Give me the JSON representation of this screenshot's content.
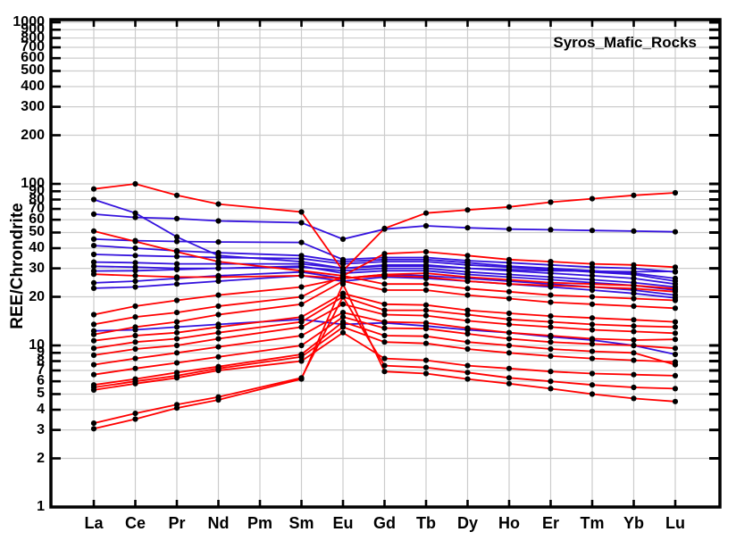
{
  "chart_data": {
    "type": "line",
    "title": "Syros_Mafic_Rocks",
    "ylabel": "REE/Chrondrite",
    "xlabel": "",
    "yscale": "log",
    "ylim": [
      1,
      1000
    ],
    "grid": true,
    "legend": "none",
    "x_categories": [
      "La",
      "Ce",
      "Pr",
      "Nd",
      "Pm",
      "Sm",
      "Eu",
      "Gd",
      "Tb",
      "Dy",
      "Ho",
      "Er",
      "Tm",
      "Yb",
      "Lu"
    ],
    "skip_category": "Pm",
    "y_tick_labels": [
      1000,
      900,
      800,
      700,
      600,
      500,
      400,
      300,
      200,
      100,
      90,
      80,
      70,
      60,
      50,
      40,
      30,
      20,
      10,
      9,
      8,
      7,
      6,
      5,
      4,
      3,
      2,
      1
    ],
    "colors": {
      "red_series": "#ff0000",
      "blue_series": "#3412dd",
      "marker": "#000000",
      "grid": "#cccccc",
      "frame": "#000000"
    },
    "series": [
      {
        "color": "blue",
        "values": [
          65,
          62,
          61,
          59,
          null,
          57.5,
          45.5,
          52.5,
          55,
          53.5,
          52.5,
          52,
          51.5,
          51,
          50.5
        ]
      },
      {
        "color": "blue",
        "values": [
          80,
          66,
          47,
          36,
          null,
          33,
          30,
          31,
          31,
          30,
          29.5,
          29,
          28.8,
          28.6,
          28.7
        ]
      },
      {
        "color": "blue",
        "values": [
          45.5,
          44.5,
          44,
          43.7,
          null,
          43.4,
          34,
          35,
          35,
          33.5,
          32.5,
          31.5,
          30.5,
          30,
          28.5
        ]
      },
      {
        "color": "blue",
        "values": [
          41.5,
          40,
          38.5,
          37.5,
          null,
          36,
          33,
          34,
          34,
          32.5,
          31,
          30,
          29,
          28,
          26
        ]
      },
      {
        "color": "blue",
        "values": [
          36.6,
          36,
          35.5,
          35,
          null,
          34.5,
          32,
          33,
          33,
          31.5,
          30.5,
          29.5,
          28.5,
          27.5,
          25
        ]
      },
      {
        "color": "blue",
        "values": [
          32.8,
          32.5,
          32,
          32,
          null,
          32,
          30,
          31.5,
          31.5,
          30,
          29,
          28,
          27,
          26,
          24
        ]
      },
      {
        "color": "blue",
        "values": [
          30.9,
          30.5,
          30,
          30,
          null,
          30.5,
          29,
          30,
          30,
          28.5,
          27.5,
          26.5,
          25.5,
          24.5,
          23
        ]
      },
      {
        "color": "blue",
        "values": [
          28.9,
          29,
          29.5,
          30,
          null,
          31,
          28,
          29,
          29,
          27.5,
          26.5,
          25.5,
          24.5,
          23.5,
          22
        ]
      },
      {
        "color": "blue",
        "values": [
          24.4,
          25,
          26,
          27,
          null,
          28.5,
          26,
          27.5,
          27,
          26,
          25,
          24,
          23,
          22,
          20.5
        ]
      },
      {
        "color": "blue",
        "values": [
          22.6,
          23,
          24,
          25,
          null,
          27,
          25,
          26.5,
          26,
          25,
          24,
          23,
          22,
          21,
          19.7
        ]
      },
      {
        "color": "blue",
        "values": [
          12.3,
          12.5,
          13,
          13.5,
          null,
          14.5,
          13.5,
          13.8,
          13.2,
          12.5,
          12,
          11.3,
          10.8,
          10,
          8.8
        ]
      },
      {
        "color": "red",
        "values": [
          93,
          100,
          85,
          75,
          null,
          67,
          29,
          53,
          66,
          69,
          72,
          77,
          81,
          85,
          88
        ]
      },
      {
        "color": "red",
        "values": [
          51,
          44,
          38,
          33,
          null,
          29,
          27,
          37,
          38,
          36,
          34,
          33,
          32,
          31.5,
          30.5
        ]
      },
      {
        "color": "red",
        "values": [
          27.6,
          27,
          26.5,
          26.5,
          null,
          27,
          26,
          27.5,
          28,
          26.5,
          25.5,
          24.5,
          24,
          23.5,
          22.5
        ]
      },
      {
        "color": "red",
        "values": [
          15.5,
          17.5,
          19,
          20.5,
          null,
          23,
          26,
          27,
          26.5,
          25,
          24,
          23.5,
          23,
          22.5,
          21.5
        ]
      },
      {
        "color": "red",
        "values": [
          13.5,
          15,
          16,
          17.5,
          null,
          20,
          27,
          24,
          24,
          22.5,
          21.5,
          20.5,
          20,
          19.5,
          19
        ]
      },
      {
        "color": "red",
        "values": [
          11.7,
          13,
          14,
          15.5,
          null,
          18,
          25,
          22,
          22,
          20.5,
          19.5,
          18.5,
          18,
          17.5,
          17
        ]
      },
      {
        "color": "red",
        "values": [
          10.7,
          11.5,
          12,
          13,
          null,
          15,
          21,
          18,
          17.8,
          16.5,
          15.8,
          15.2,
          14.8,
          14.4,
          14
        ]
      },
      {
        "color": "red",
        "values": [
          9.6,
          10.5,
          11,
          12,
          null,
          14,
          20,
          16.5,
          16.5,
          15.5,
          14.5,
          14,
          13.5,
          13.2,
          13
        ]
      },
      {
        "color": "red",
        "values": [
          8.7,
          9.5,
          10,
          11,
          null,
          13,
          18,
          15.5,
          15.3,
          14.2,
          13.5,
          13,
          12.5,
          12.2,
          11.9
        ]
      },
      {
        "color": "red",
        "values": [
          7.6,
          8.3,
          9,
          9.8,
          null,
          11.5,
          16,
          14,
          13.8,
          12.8,
          12,
          11.5,
          11,
          10.8,
          10.9
        ]
      },
      {
        "color": "red",
        "values": [
          6.6,
          7.2,
          7.8,
          8.5,
          null,
          10,
          15,
          12.8,
          12.7,
          11.8,
          11,
          10.5,
          10.2,
          10,
          9.6
        ]
      },
      {
        "color": "red",
        "values": [
          5.7,
          6.2,
          6.8,
          7.4,
          null,
          8.8,
          14,
          11.5,
          11.4,
          10.5,
          10,
          9.5,
          9.2,
          9,
          7.6
        ]
      },
      {
        "color": "red",
        "values": [
          5.5,
          6,
          6.5,
          7.2,
          null,
          8.5,
          13,
          10.5,
          10.3,
          9.5,
          9,
          8.6,
          8.3,
          8.1,
          7.9
        ]
      },
      {
        "color": "red",
        "values": [
          5.3,
          5.8,
          6.3,
          7,
          null,
          8,
          12,
          8.3,
          8.1,
          7.5,
          7.2,
          6.9,
          6.7,
          6.6,
          6.5
        ]
      },
      {
        "color": "red",
        "values": [
          3.3,
          3.8,
          4.3,
          4.8,
          null,
          6.3,
          20,
          7.5,
          7.3,
          6.8,
          6.3,
          6,
          5.7,
          5.5,
          5.4
        ]
      },
      {
        "color": "red",
        "values": [
          3.05,
          3.5,
          4.1,
          4.6,
          null,
          6.2,
          24,
          6.9,
          6.7,
          6.2,
          5.8,
          5.4,
          5,
          4.7,
          4.5
        ]
      }
    ]
  }
}
